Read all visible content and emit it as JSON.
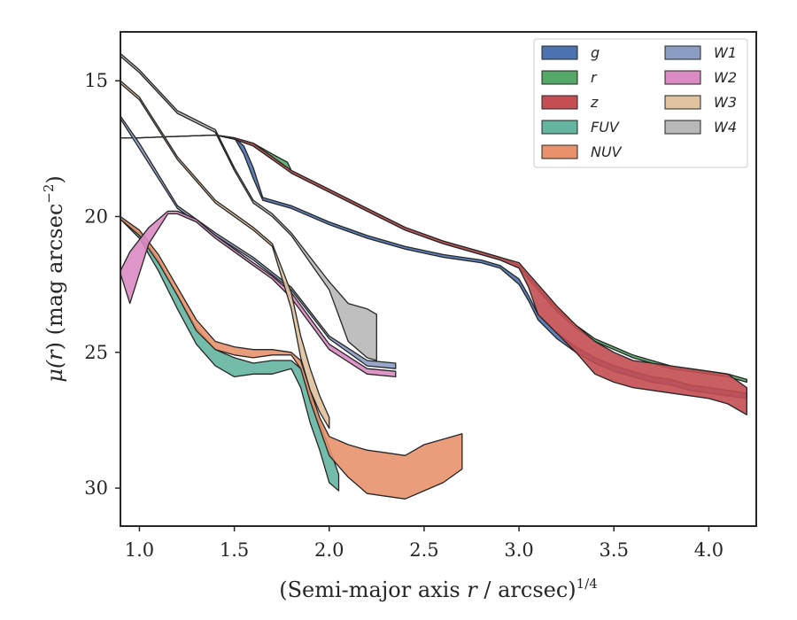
{
  "chart_data": {
    "type": "area",
    "xlabel_main": "(Semi-major axis ",
    "xlabel_var": "r",
    "xlabel_tail": " / arcsec)",
    "xlabel_sup": "1/4",
    "ylabel_main": "μ(",
    "ylabel_var": "r",
    "ylabel_tail": ") (mag arcsec",
    "ylabel_sup": "−2",
    "ylabel_end": ")",
    "xlim": [
      0.9,
      4.25
    ],
    "ylim": [
      31.4,
      13.2
    ],
    "y_inverted": true,
    "grid": false,
    "legend_position": "top-right",
    "xticks": [
      1.0,
      1.5,
      2.0,
      2.5,
      3.0,
      3.5,
      4.0
    ],
    "xtick_labels": [
      "1.0",
      "1.5",
      "2.0",
      "2.5",
      "3.0",
      "3.5",
      "4.0"
    ],
    "yticks": [
      15,
      20,
      25,
      30
    ],
    "ytick_labels": [
      "15",
      "20",
      "25",
      "30"
    ],
    "series": [
      {
        "name": "g",
        "color": "#4c72b0",
        "x": [
          0.9,
          1.0,
          1.2,
          1.4,
          1.5,
          1.55,
          1.6,
          1.65,
          1.8,
          2.0,
          2.2,
          2.4,
          2.6,
          2.8,
          2.9,
          3.0,
          3.05,
          3.1,
          3.2,
          3.3,
          3.4,
          3.5,
          3.6,
          3.7,
          3.8,
          3.9,
          4.0,
          4.1,
          4.2
        ],
        "y": [
          17.1,
          17.1,
          17.05,
          17.0,
          17.1,
          17.4,
          18.2,
          19.3,
          19.6,
          20.2,
          20.7,
          21.1,
          21.4,
          21.6,
          21.8,
          22.3,
          22.9,
          23.6,
          24.3,
          24.8,
          25.2,
          25.5,
          25.7,
          25.9,
          26.0,
          26.2,
          26.3,
          26.4,
          26.5
        ],
        "y_lo": [
          17.1,
          17.1,
          17.05,
          17.0,
          17.1,
          17.7,
          18.6,
          19.4,
          19.7,
          20.3,
          20.8,
          21.2,
          21.5,
          21.7,
          21.9,
          22.5,
          23.1,
          23.8,
          24.5,
          25.0,
          25.4,
          25.7,
          25.9,
          26.1,
          26.2,
          26.4,
          26.5,
          26.6,
          26.7
        ]
      },
      {
        "name": "r",
        "color": "#55a868",
        "x": [
          0.9,
          1.0,
          1.2,
          1.4,
          1.5,
          1.6,
          1.7,
          1.78,
          1.8,
          2.0,
          2.2,
          2.4,
          2.6,
          2.8,
          2.9,
          3.0,
          3.05,
          3.1,
          3.2,
          3.3,
          3.4,
          3.5,
          3.6,
          3.7,
          3.8,
          3.9,
          4.0,
          4.1,
          4.2
        ],
        "y": [
          17.1,
          17.1,
          17.05,
          17.0,
          17.1,
          17.3,
          17.7,
          18.0,
          18.3,
          19.0,
          19.7,
          20.4,
          20.9,
          21.3,
          21.5,
          21.8,
          22.2,
          22.6,
          23.4,
          24.0,
          24.5,
          24.8,
          25.1,
          25.3,
          25.5,
          25.6,
          25.7,
          25.8,
          26.0
        ],
        "y_lo": [
          17.1,
          17.1,
          17.05,
          17.0,
          17.15,
          17.4,
          17.9,
          18.2,
          18.4,
          19.1,
          19.8,
          20.5,
          21.0,
          21.4,
          21.6,
          21.9,
          22.3,
          22.7,
          23.5,
          24.1,
          24.6,
          24.9,
          25.2,
          25.4,
          25.6,
          25.7,
          25.8,
          25.9,
          26.1
        ]
      },
      {
        "name": "z",
        "color": "#c44e52",
        "x": [
          0.9,
          1.0,
          1.2,
          1.4,
          1.5,
          1.6,
          1.7,
          1.8,
          2.0,
          2.2,
          2.4,
          2.6,
          2.8,
          2.9,
          3.0,
          3.05,
          3.1,
          3.2,
          3.3,
          3.4,
          3.5,
          3.6,
          3.7,
          3.8,
          3.9,
          4.0,
          4.1,
          4.2
        ],
        "y": [
          17.1,
          17.1,
          17.05,
          17.0,
          17.1,
          17.3,
          17.8,
          18.3,
          19.0,
          19.7,
          20.4,
          20.9,
          21.3,
          21.5,
          21.7,
          22.1,
          22.5,
          23.3,
          24.0,
          24.6,
          25.0,
          25.3,
          25.4,
          25.5,
          25.6,
          25.7,
          25.8,
          26.3
        ],
        "y_lo": [
          17.1,
          17.1,
          17.05,
          17.0,
          17.15,
          17.4,
          17.9,
          18.4,
          19.1,
          19.8,
          20.5,
          21.0,
          21.4,
          21.6,
          21.9,
          22.6,
          23.6,
          24.3,
          25.0,
          25.8,
          26.1,
          26.3,
          26.4,
          26.5,
          26.6,
          26.7,
          26.9,
          27.3
        ]
      },
      {
        "name": "FUV",
        "color": "#64b5a0",
        "x": [
          0.9,
          1.0,
          1.1,
          1.2,
          1.3,
          1.4,
          1.5,
          1.6,
          1.7,
          1.8,
          1.85,
          1.9,
          1.95,
          2.0,
          2.05
        ],
        "y": [
          20.0,
          20.6,
          21.6,
          22.9,
          24.1,
          24.9,
          25.2,
          25.4,
          25.3,
          25.3,
          25.6,
          26.6,
          27.6,
          28.5,
          29.5
        ],
        "y_lo": [
          20.1,
          20.8,
          22.0,
          23.4,
          24.7,
          25.5,
          25.9,
          25.8,
          25.8,
          25.6,
          26.3,
          27.6,
          28.6,
          29.8,
          30.1
        ]
      },
      {
        "name": "NUV",
        "color": "#e8926c",
        "x": [
          0.9,
          1.0,
          1.1,
          1.2,
          1.3,
          1.4,
          1.5,
          1.6,
          1.7,
          1.8,
          1.85,
          1.9,
          1.95,
          2.0,
          2.1,
          2.2,
          2.3,
          2.4,
          2.5,
          2.6,
          2.7
        ],
        "y": [
          20.0,
          20.5,
          21.4,
          22.6,
          23.8,
          24.6,
          24.8,
          24.9,
          24.9,
          25.0,
          25.3,
          26.4,
          27.4,
          28.1,
          28.4,
          28.6,
          28.7,
          28.8,
          28.4,
          28.2,
          28.0
        ],
        "y_lo": [
          20.1,
          20.7,
          21.7,
          22.9,
          24.2,
          24.9,
          25.1,
          25.2,
          25.1,
          25.1,
          25.6,
          26.8,
          27.8,
          28.8,
          29.6,
          30.2,
          30.3,
          30.4,
          30.1,
          29.8,
          29.3
        ]
      },
      {
        "name": "W1",
        "color": "#8c9dc4",
        "x": [
          0.9,
          1.0,
          1.2,
          1.4,
          1.6,
          1.8,
          2.0,
          2.2,
          2.35
        ],
        "y": [
          16.3,
          17.3,
          19.6,
          20.6,
          21.5,
          22.6,
          24.4,
          25.3,
          25.4
        ],
        "y_lo": [
          16.4,
          17.5,
          19.7,
          20.7,
          21.6,
          22.7,
          24.5,
          25.5,
          25.6
        ]
      },
      {
        "name": "W2",
        "color": "#da8bc3",
        "x": [
          0.9,
          0.95,
          1.05,
          1.15,
          1.2,
          1.3,
          1.4,
          1.5,
          1.6,
          1.7,
          1.8,
          2.0,
          2.2,
          2.35
        ],
        "y": [
          22.0,
          21.3,
          20.4,
          19.8,
          19.8,
          20.1,
          20.7,
          21.2,
          21.7,
          22.2,
          22.8,
          24.7,
          25.6,
          25.7
        ],
        "y_lo": [
          22.1,
          23.2,
          21.0,
          19.9,
          19.9,
          20.2,
          20.8,
          21.3,
          21.8,
          22.3,
          23.0,
          24.9,
          25.8,
          25.9
        ]
      },
      {
        "name": "W3",
        "color": "#dfc29e",
        "x": [
          0.9,
          1.0,
          1.2,
          1.4,
          1.6,
          1.7,
          1.8,
          1.85,
          1.9,
          1.95,
          2.0
        ],
        "y": [
          15.0,
          15.6,
          17.8,
          19.4,
          20.4,
          21.0,
          22.8,
          24.4,
          25.6,
          26.6,
          27.4
        ],
        "y_lo": [
          15.1,
          15.7,
          17.9,
          19.5,
          20.5,
          21.1,
          23.4,
          25.2,
          26.4,
          27.2,
          27.8
        ]
      },
      {
        "name": "W4",
        "color": "#b8b8b8",
        "x": [
          0.9,
          1.0,
          1.2,
          1.4,
          1.5,
          1.6,
          1.7,
          1.8,
          1.9,
          2.0,
          2.1,
          2.2,
          2.25
        ],
        "y": [
          14.0,
          14.6,
          16.1,
          16.8,
          18.2,
          19.4,
          19.9,
          20.6,
          21.5,
          22.4,
          23.2,
          23.4,
          23.6
        ],
        "y_lo": [
          14.1,
          14.7,
          16.2,
          16.9,
          18.3,
          19.5,
          20.0,
          20.7,
          21.7,
          22.7,
          24.6,
          25.2,
          25.3
        ]
      }
    ]
  }
}
